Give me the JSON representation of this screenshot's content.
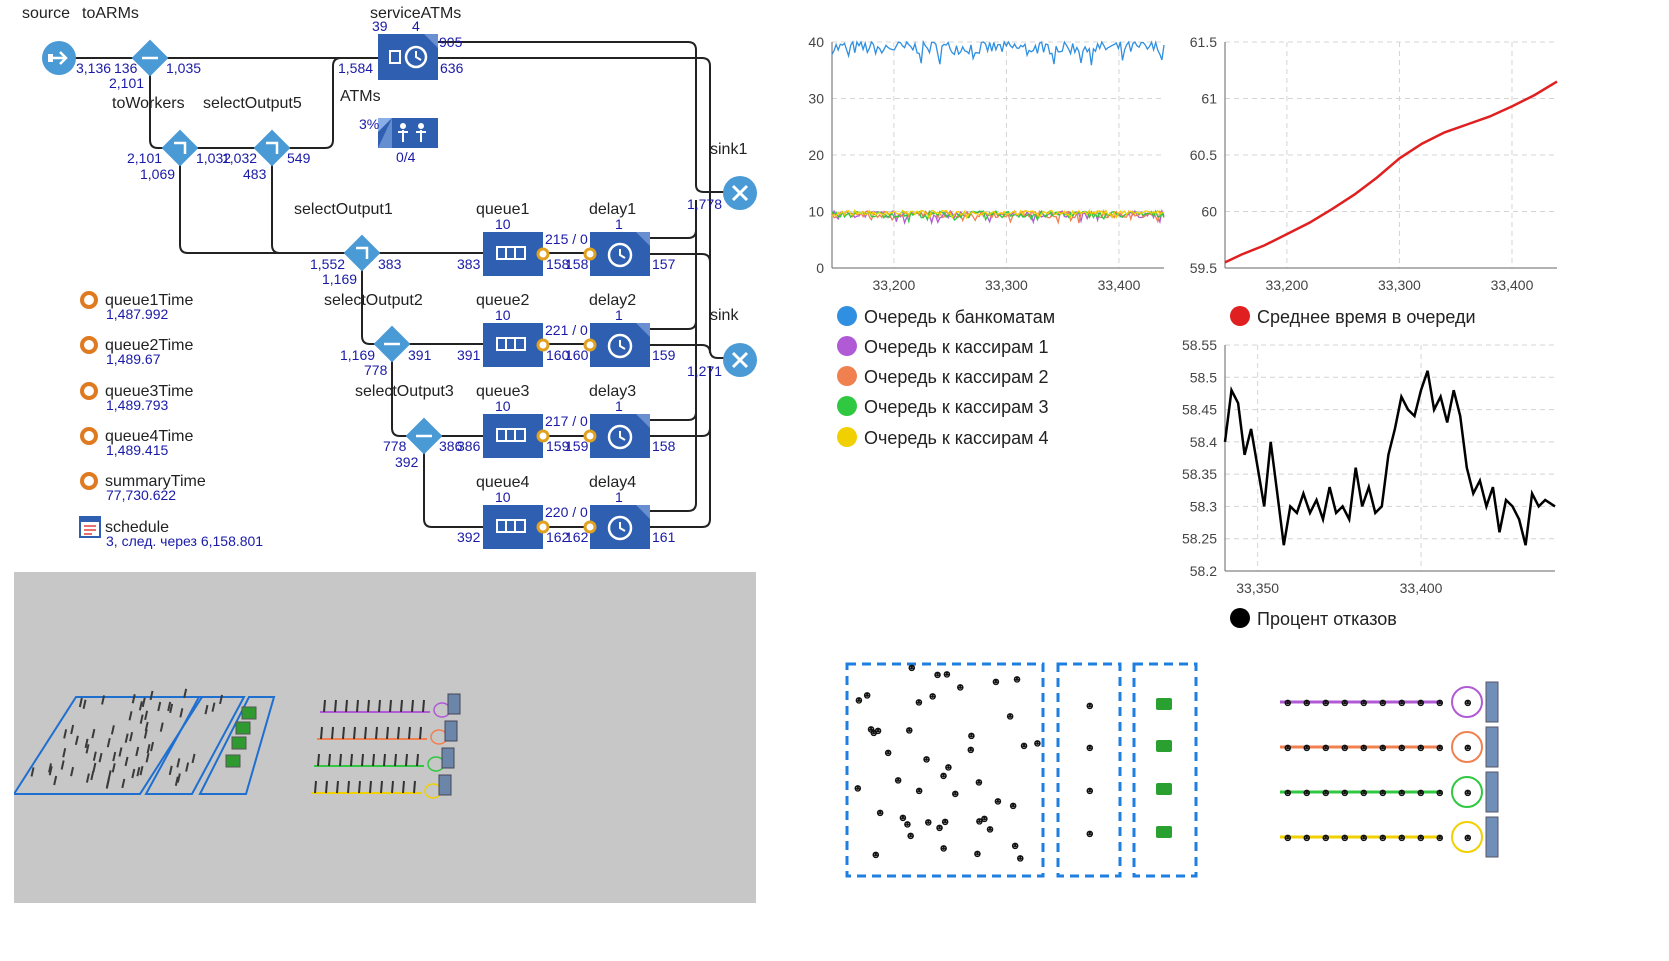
{
  "flowchart": {
    "blocks": {
      "source": "source",
      "toARMs": "toARMs",
      "serviceATMs": "serviceATMs",
      "ATMs": "ATMs",
      "toWorkers": "toWorkers",
      "selectOutput5": "selectOutput5",
      "sink1": "sink1",
      "sink": "sink",
      "selectOutput1": "selectOutput1",
      "selectOutput2": "selectOutput2",
      "selectOutput3": "selectOutput3",
      "queue1": "queue1",
      "queue2": "queue2",
      "queue3": "queue3",
      "queue4": "queue4",
      "delay1": "delay1",
      "delay2": "delay2",
      "delay3": "delay3",
      "delay4": "delay4"
    },
    "counts": {
      "source_out": "3,136",
      "toARMs_in": "136",
      "toARMs_out1": "1,035",
      "toARMs_out2": "2,101",
      "service_q": "39",
      "service_cap": "4",
      "service_in": "1,584",
      "service_out": "636",
      "service_out2": "905",
      "atms_util": "3%",
      "atms_avail": "0/4",
      "toWorkers_in": "2,101",
      "toWorkers_out1": "1,032",
      "toWorkers_out2": "1,069",
      "select5_in": "1,032",
      "select5_out1": "549",
      "select5_out2": "483",
      "sink1_in": "1,778",
      "sink_in": "1,271",
      "select1_in": "1,552",
      "select1_out1": "383",
      "select1_out2": "1,169",
      "select2_in": "1,169",
      "select2_out1": "391",
      "select2_out2": "778",
      "select3_in": "778",
      "select3_out1": "386",
      "select3_out2": "392",
      "q1_cap": "10",
      "q1_in": "383",
      "q1_out": "158",
      "q1_stat": "215 / 0",
      "q2_cap": "10",
      "q2_in": "391",
      "q2_out": "160",
      "q2_stat": "221 / 0",
      "q3_cap": "10",
      "q3_in": "386",
      "q3_out": "159",
      "q3_stat": "217 / 0",
      "q4_cap": "10",
      "q4_in": "392",
      "q4_out": "162",
      "q4_stat": "220 / 0",
      "d1_cap": "1",
      "d1_in": "158",
      "d1_out": "157",
      "d2_cap": "1",
      "d2_in": "160",
      "d2_out": "159",
      "d3_cap": "1",
      "d3_in": "159",
      "d3_out": "158",
      "d4_cap": "1",
      "d4_in": "162",
      "d4_out": "161"
    }
  },
  "variables": [
    {
      "name": "queue1Time",
      "value": "1,487.992"
    },
    {
      "name": "queue2Time",
      "value": "1,489.67"
    },
    {
      "name": "queue3Time",
      "value": "1,489.793"
    },
    {
      "name": "queue4Time",
      "value": "1,489.415"
    },
    {
      "name": "summaryTime",
      "value": "77,730.622"
    }
  ],
  "schedule": {
    "name": "schedule",
    "value": "3, след. через 6,158.801"
  },
  "colors": {
    "block_blue": "#2f5fb0",
    "select_blue": "#4a9ad6",
    "atm_line": "#2f8fe0",
    "cashier1": "#b05ad6",
    "cashier2": "#f08050",
    "cashier3": "#30c840",
    "cashier4": "#f0d000",
    "avg_time": "#e02020",
    "refusal": "#000000"
  },
  "chart_data": [
    {
      "type": "line",
      "x_ticks": [
        "33,200",
        "33,300",
        "33,400"
      ],
      "y_ticks": [
        "0",
        "10",
        "20",
        "30",
        "40"
      ],
      "ylim": [
        0,
        40
      ],
      "xlim": [
        33145,
        33440
      ],
      "series": [
        {
          "name": "Очередь к банкоматам",
          "color": "#2f8fe0",
          "level": 39,
          "jitter": 1.2
        },
        {
          "name": "Очередь к кассирам 1",
          "color": "#b05ad6",
          "level": 9.5,
          "jitter": 0.6
        },
        {
          "name": "Очередь к кассирам 2",
          "color": "#f08050",
          "level": 9.5,
          "jitter": 0.6
        },
        {
          "name": "Очередь к кассирам 3",
          "color": "#30c840",
          "level": 9.5,
          "jitter": 0.6
        },
        {
          "name": "Очередь к кассирам 4",
          "color": "#f0d000",
          "level": 9.8,
          "jitter": 0.4
        }
      ]
    },
    {
      "type": "line",
      "x_ticks": [
        "33,200",
        "33,300",
        "33,400"
      ],
      "y_ticks": [
        "59.5",
        "60",
        "60.5",
        "61",
        "61.5"
      ],
      "ylim": [
        59.5,
        61.5
      ],
      "xlim": [
        33145,
        33440
      ],
      "series": [
        {
          "name": "Среднее время в очереди",
          "color": "#e02020",
          "x": [
            33145,
            33160,
            33180,
            33200,
            33220,
            33240,
            33260,
            33280,
            33300,
            33320,
            33340,
            33360,
            33380,
            33400,
            33420,
            33440
          ],
          "y": [
            59.55,
            59.62,
            59.7,
            59.8,
            59.9,
            60.02,
            60.15,
            60.3,
            60.47,
            60.6,
            60.7,
            60.77,
            60.84,
            60.93,
            61.03,
            61.15
          ]
        }
      ]
    },
    {
      "type": "line",
      "x_ticks": [
        "33,350",
        "33,400"
      ],
      "y_ticks": [
        "58.2",
        "58.25",
        "58.3",
        "58.35",
        "58.4",
        "58.45",
        "58.5",
        "58.55"
      ],
      "ylim": [
        58.2,
        58.55
      ],
      "xlim": [
        33340,
        33441
      ],
      "series": [
        {
          "name": "Процент отказов",
          "color": "#000000",
          "x": [
            33340,
            33342,
            33344,
            33346,
            33348,
            33350,
            33352,
            33354,
            33356,
            33358,
            33360,
            33362,
            33364,
            33366,
            33368,
            33370,
            33372,
            33374,
            33376,
            33378,
            33380,
            33382,
            33384,
            33386,
            33388,
            33390,
            33392,
            33394,
            33396,
            33398,
            33400,
            33402,
            33404,
            33406,
            33408,
            33410,
            33412,
            33414,
            33416,
            33418,
            33420,
            33422,
            33424,
            33426,
            33428,
            33430,
            33432,
            33434,
            33436,
            33438,
            33441
          ],
          "y": [
            58.4,
            58.48,
            58.46,
            58.38,
            58.42,
            58.36,
            58.3,
            58.4,
            58.32,
            58.24,
            58.3,
            58.29,
            58.32,
            58.29,
            58.31,
            58.28,
            58.33,
            58.29,
            58.3,
            58.28,
            58.36,
            58.3,
            58.33,
            58.29,
            58.3,
            58.38,
            58.42,
            58.47,
            58.45,
            58.44,
            58.48,
            58.51,
            58.45,
            58.47,
            58.43,
            58.48,
            58.44,
            58.36,
            58.32,
            58.34,
            58.3,
            58.33,
            58.26,
            58.31,
            58.3,
            58.28,
            58.24,
            58.32,
            58.3,
            58.31,
            58.3
          ]
        }
      ]
    }
  ],
  "legends": {
    "left": [
      "Очередь к банкоматам",
      "Очередь к кассирам 1",
      "Очередь к кассирам 2",
      "Очередь к кассирам 3",
      "Очередь к кассирам 4"
    ],
    "avg": "Среднее время в очереди",
    "refusal": "Процент отказов"
  }
}
